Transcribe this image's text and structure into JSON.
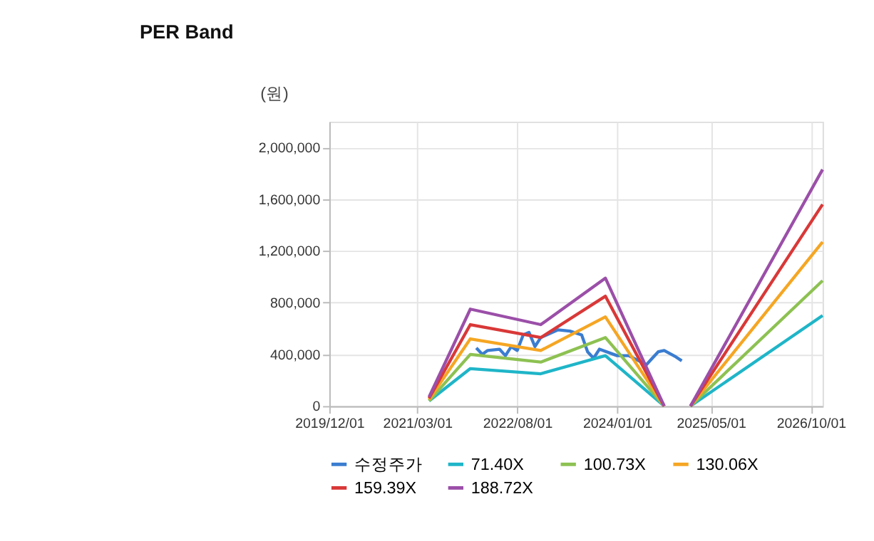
{
  "chart_data": {
    "type": "line",
    "title": "PER Band",
    "ylabel": "(원)",
    "xlim": [
      "2019-12-01",
      "2026-12-01"
    ],
    "xticks": [
      {
        "value": "2019-12-01",
        "label": "2019/12/01"
      },
      {
        "value": "2021-03-01",
        "label": "2021/03/01"
      },
      {
        "value": "2022-08-01",
        "label": "2022/08/01"
      },
      {
        "value": "2024-01-01",
        "label": "2024/01/01"
      },
      {
        "value": "2025-05-01",
        "label": "2025/05/01"
      },
      {
        "value": "2026-10-01",
        "label": "2026/10/01"
      }
    ],
    "ylim": [
      0,
      2200000
    ],
    "yticks": [
      0,
      {
        "value": 400000,
        "label": "400,000"
      },
      {
        "value": 800000,
        "label": "800,000"
      },
      {
        "value": 1200000,
        "label": "1,200,000"
      },
      {
        "value": 1600000,
        "label": "1,600,000"
      },
      {
        "value": 2000000,
        "label": "2,000,000"
      }
    ],
    "grid": true,
    "legend": "bottom",
    "marker": "none",
    "line_style": "solid",
    "series": [
      {
        "name": "수정주가",
        "color": "#3a7dd0",
        "x": [
          "2022-01-01",
          "2022-02-01",
          "2022-03-01",
          "2022-05-01",
          "2022-06-01",
          "2022-07-01",
          "2022-08-01",
          "2022-09-01",
          "2022-10-01",
          "2022-11-01",
          "2022-12-01",
          "2023-03-01",
          "2023-05-01",
          "2023-07-01",
          "2023-08-01",
          "2023-09-01",
          "2023-10-01",
          "2024-01-01",
          "2024-03-01",
          "2024-06-01",
          "2024-07-01",
          "2024-08-01",
          "2024-09-01",
          "2024-11-01",
          "2024-12-01"
        ],
        "values": [
          450000,
          400000,
          430000,
          440000,
          390000,
          460000,
          430000,
          550000,
          570000,
          460000,
          530000,
          590000,
          580000,
          550000,
          420000,
          370000,
          440000,
          390000,
          390000,
          320000,
          370000,
          420000,
          430000,
          380000,
          350000
        ]
      },
      {
        "name": "71.40X",
        "color": "#1fb5c8",
        "x": [
          "2021-05-01",
          "2021-12-01",
          "2022-12-01",
          "2023-11-01",
          "2024-09-01",
          "2024-11-01",
          "2025-01-15",
          "2026-12-01"
        ],
        "values": [
          40000,
          290000,
          250000,
          390000,
          0,
          null,
          0,
          700000
        ]
      },
      {
        "name": "100.73X",
        "color": "#8dc152",
        "x": [
          "2021-05-01",
          "2021-12-01",
          "2022-12-01",
          "2023-11-01",
          "2024-09-01",
          "2024-11-01",
          "2025-01-15",
          "2026-12-01"
        ],
        "values": [
          40000,
          400000,
          340000,
          530000,
          0,
          null,
          0,
          970000
        ]
      },
      {
        "name": "130.06X",
        "color": "#f5a623",
        "x": [
          "2021-05-01",
          "2021-12-01",
          "2022-12-01",
          "2023-11-01",
          "2024-09-01",
          "2024-11-01",
          "2025-01-15",
          "2026-12-01"
        ],
        "values": [
          50000,
          520000,
          430000,
          690000,
          0,
          null,
          0,
          1270000
        ]
      },
      {
        "name": "159.39X",
        "color": "#d93838",
        "x": [
          "2021-05-01",
          "2021-12-01",
          "2022-12-01",
          "2023-11-01",
          "2024-09-01",
          "2024-11-01",
          "2025-01-15",
          "2026-12-01"
        ],
        "values": [
          60000,
          630000,
          530000,
          850000,
          0,
          null,
          0,
          1560000
        ]
      },
      {
        "name": "188.72X",
        "color": "#9b4fa8",
        "x": [
          "2021-05-01",
          "2021-12-01",
          "2022-12-01",
          "2023-11-01",
          "2024-09-01",
          "2024-11-01",
          "2025-01-15",
          "2026-12-01"
        ],
        "values": [
          70000,
          750000,
          630000,
          990000,
          0,
          null,
          0,
          1830000
        ]
      }
    ]
  }
}
